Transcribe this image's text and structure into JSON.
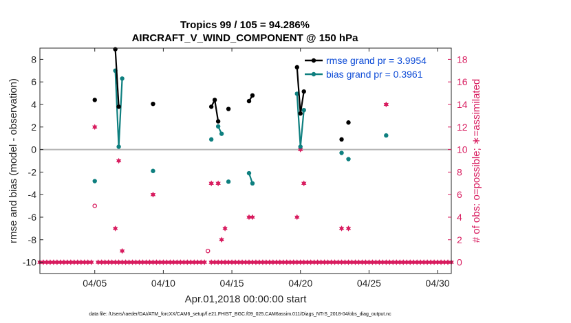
{
  "chart_data": {
    "type": "line",
    "title_line1": "Tropics 99 / 105 = 94.286%",
    "title_line2": "AIRCRAFT_V_WIND_COMPONENT @ 150 hPa",
    "xlabel": "Apr.01,2018 00:00:00 start",
    "ylabel_left": "rmse and bias (model - observation)",
    "ylabel_right": "# of obs: o=possible; ∗=assimilated",
    "footnote": "data file: /Users/raeder/DAI/ATM_forcXX/CAM6_setup/f.e21.FHIST_BGC.f09_025.CAM6assim.011/Diags_NTrS_2018-04/obs_diag_output.nc",
    "xlim": [
      1,
      31
    ],
    "ylim_left": [
      -11,
      9
    ],
    "ylim_right": [
      -1,
      19
    ],
    "x_ticks": [
      5,
      10,
      15,
      20,
      25,
      30
    ],
    "x_tick_labels": [
      "04/05",
      "04/10",
      "04/15",
      "04/20",
      "04/25",
      "04/30"
    ],
    "y_left_ticks": [
      "-10",
      "-8",
      "-6",
      "-4",
      "-2",
      "0",
      "2",
      "4",
      "6",
      "8"
    ],
    "y_right_ticks": [
      "0",
      "2",
      "4",
      "6",
      "8",
      "10",
      "12",
      "14",
      "16",
      "18"
    ],
    "colors": {
      "rmse": "#000000",
      "bias": "#0e7f7f",
      "obs": "#d81c5f",
      "zero_line": "#b5b5b5",
      "legend_text": "#0a49d6"
    },
    "legend": [
      "rmse grand pr = 3.9954",
      "bias grand pr = 0.3961"
    ],
    "series": [
      {
        "name": "rmse",
        "segments": [
          [
            [
              5,
              4.4
            ]
          ],
          [
            [
              6.5,
              8.9
            ],
            [
              6.75,
              3.8
            ]
          ],
          [
            [
              9.25,
              4.05
            ]
          ],
          [
            [
              13.5,
              3.8
            ],
            [
              13.75,
              4.4
            ],
            [
              14.0,
              2.5
            ]
          ],
          [
            [
              14.75,
              3.6
            ]
          ],
          [
            [
              16.25,
              4.3
            ],
            [
              16.5,
              4.8
            ]
          ],
          [
            [
              19.75,
              7.3
            ],
            [
              20.0,
              3.2
            ],
            [
              20.25,
              5.15
            ]
          ],
          [
            [
              23.0,
              0.9
            ]
          ],
          [
            [
              23.5,
              2.4
            ]
          ]
        ]
      },
      {
        "name": "bias",
        "segments": [
          [
            [
              5,
              -2.8
            ]
          ],
          [
            [
              6.5,
              7.0
            ],
            [
              6.75,
              0.25
            ],
            [
              7.0,
              6.3
            ]
          ],
          [
            [
              9.25,
              -1.9
            ]
          ],
          [
            [
              13.5,
              0.9
            ]
          ],
          [
            [
              14.0,
              2.05
            ],
            [
              14.25,
              1.4
            ]
          ],
          [
            [
              14.75,
              -2.85
            ]
          ],
          [
            [
              16.25,
              -2.1
            ],
            [
              16.5,
              -3.0
            ]
          ],
          [
            [
              19.75,
              4.95
            ],
            [
              20.0,
              0.25
            ],
            [
              20.25,
              3.5
            ]
          ],
          [
            [
              23.0,
              -0.3
            ]
          ],
          [
            [
              23.5,
              -0.85
            ]
          ],
          [
            [
              26.25,
              1.25
            ]
          ]
        ]
      }
    ],
    "obs_possible": [
      [
        5.0,
        5
      ],
      [
        13.25,
        1
      ]
    ],
    "obs_assimilated": [
      [
        5,
        12
      ],
      [
        6.5,
        3
      ],
      [
        6.75,
        9
      ],
      [
        7.0,
        1
      ],
      [
        9.25,
        6
      ],
      [
        13.5,
        7
      ],
      [
        14.0,
        7
      ],
      [
        14.25,
        2
      ],
      [
        14.5,
        3
      ],
      [
        16.25,
        4
      ],
      [
        16.5,
        4
      ],
      [
        19.75,
        4
      ],
      [
        20.0,
        10
      ],
      [
        20.25,
        7
      ],
      [
        23.0,
        3
      ],
      [
        23.5,
        3
      ],
      [
        26.25,
        14
      ]
    ],
    "obs_zero_x_start": 1,
    "obs_zero_x_end": 31,
    "obs_zero_step": 0.25,
    "obs_zero_exclude": [
      5.0,
      13.25
    ]
  }
}
